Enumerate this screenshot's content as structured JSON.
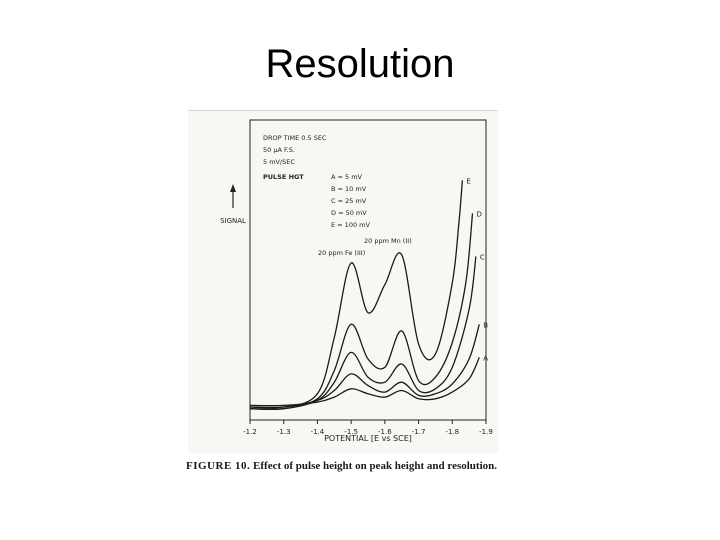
{
  "slide": {
    "title": "Resolution"
  },
  "figure": {
    "caption_label": "FIGURE 10.",
    "caption_text": "Effect of pulse height on peak height and resolution."
  },
  "chart_data": {
    "type": "line",
    "xlabel": "POTENTIAL  [E vs SCE]",
    "ylabel": "SIGNAL",
    "xlim": [
      -1.2,
      -1.9
    ],
    "x_ticks": [
      "-1.2",
      "-1.3",
      "-1.4",
      "-1.5",
      "-1.6",
      "-1.7",
      "-1.8",
      "-1.9"
    ],
    "conditions": [
      "DROP TIME 0.5 SEC",
      "50 µA F.S.",
      "5 mV/SEC"
    ],
    "legend_heading": "PULSE HGT",
    "legend_entries": [
      "A = 5 mV",
      "B = 10 mV",
      "C = 25 mV",
      "D = 50 mV",
      "E = 100 mV"
    ],
    "peak_annotations": [
      "20 ppm Mn (II)",
      "20 ppm Fe (III)"
    ],
    "series": [
      {
        "name": "A",
        "x": [
          -1.2,
          -1.3,
          -1.4,
          -1.45,
          -1.5,
          -1.55,
          -1.6,
          -1.65,
          -1.7,
          -1.75,
          -1.8,
          -1.85,
          -1.88
        ],
        "y": [
          0.04,
          0.04,
          0.06,
          0.09,
          0.14,
          0.11,
          0.09,
          0.13,
          0.08,
          0.08,
          0.12,
          0.2,
          0.33
        ]
      },
      {
        "name": "B",
        "x": [
          -1.2,
          -1.3,
          -1.4,
          -1.45,
          -1.5,
          -1.55,
          -1.6,
          -1.65,
          -1.7,
          -1.75,
          -1.8,
          -1.85,
          -1.88
        ],
        "y": [
          0.03,
          0.03,
          0.07,
          0.13,
          0.23,
          0.16,
          0.12,
          0.18,
          0.1,
          0.11,
          0.17,
          0.32,
          0.53
        ]
      },
      {
        "name": "C",
        "x": [
          -1.2,
          -1.3,
          -1.4,
          -1.45,
          -1.5,
          -1.55,
          -1.6,
          -1.65,
          -1.7,
          -1.75,
          -1.8,
          -1.85,
          -1.87
        ],
        "y": [
          0.02,
          0.02,
          0.07,
          0.18,
          0.36,
          0.21,
          0.18,
          0.29,
          0.13,
          0.14,
          0.27,
          0.62,
          0.94
        ]
      },
      {
        "name": "D",
        "x": [
          -1.2,
          -1.3,
          -1.4,
          -1.45,
          -1.5,
          -1.55,
          -1.6,
          -1.65,
          -1.7,
          -1.75,
          -1.8,
          -1.84,
          -1.86
        ],
        "y": [
          0.02,
          0.02,
          0.08,
          0.25,
          0.53,
          0.32,
          0.27,
          0.49,
          0.19,
          0.21,
          0.42,
          0.78,
          1.2
        ]
      },
      {
        "name": "E",
        "x": [
          -1.2,
          -1.3,
          -1.4,
          -1.45,
          -1.5,
          -1.55,
          -1.6,
          -1.65,
          -1.7,
          -1.75,
          -1.8,
          -1.82,
          -1.83
        ],
        "y": [
          0.03,
          0.03,
          0.11,
          0.45,
          0.9,
          0.6,
          0.77,
          0.95,
          0.41,
          0.35,
          0.78,
          1.15,
          1.4
        ]
      }
    ]
  }
}
